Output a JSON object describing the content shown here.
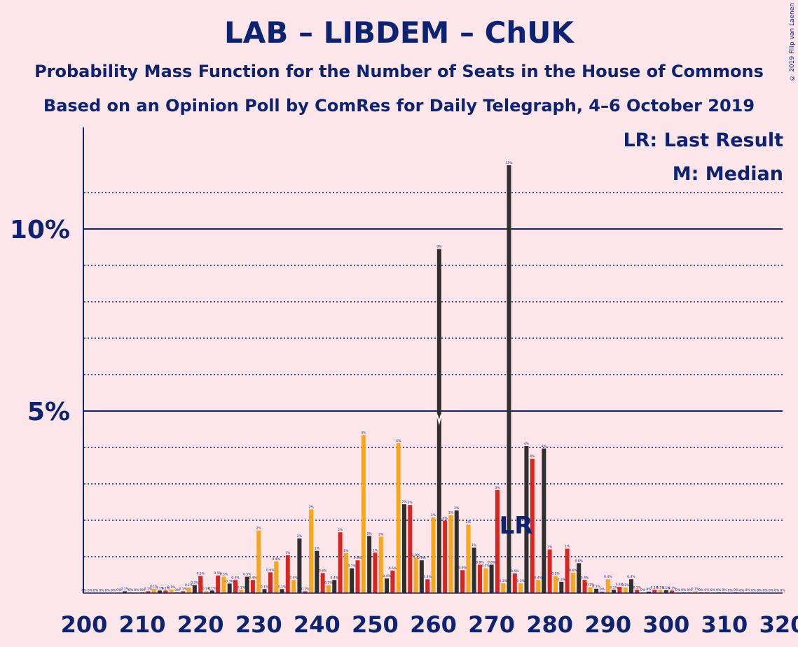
{
  "title": "LAB – LIBDEM – ChUK",
  "subtitle1": "Probability Mass Function for the Number of Seats in the House of Commons",
  "subtitle2": "Based on an Opinion Poll by ComRes for Daily Telegraph, 4–6 October 2019",
  "copyright": "© 2019 Filip van Laenen",
  "legend": {
    "lr": "LR: Last Result",
    "median": "M: Median"
  },
  "markers": {
    "lr_label": "LR",
    "lr_seat": 273,
    "median_label": "M",
    "median_seat": 261
  },
  "colors": {
    "background": "#fde6ea",
    "text": "#0b2372",
    "series": [
      "#2f2f2f",
      "#dc241f",
      "#faa61a"
    ]
  },
  "chart_data": {
    "type": "bar",
    "title": "LAB – LIBDEM – ChUK",
    "xlim": [
      200,
      320
    ],
    "ylim": [
      0,
      12.5
    ],
    "x_ticks": [
      200,
      210,
      220,
      230,
      240,
      250,
      260,
      270,
      280,
      290,
      300,
      310,
      320
    ],
    "y_ticks": [
      {
        "value": 5,
        "label": "5%"
      },
      {
        "value": 10,
        "label": "10%"
      }
    ],
    "gridlines": "dotted at every 1%, solid at 5% and 10%",
    "values": {
      "200": 0.01,
      "201": 0.01,
      "202": 0.01,
      "203": 0.01,
      "204": 0.01,
      "205": 0.01,
      "206": 0.02,
      "207": 0.05,
      "208": 0.02,
      "209": 0.02,
      "210": 0.02,
      "211": 0.05,
      "212": 0.12,
      "213": 0.07,
      "214": 0.07,
      "215": 0.1,
      "216": 0.02,
      "217": 0.05,
      "218": 0.15,
      "219": 0.22,
      "220": 0.47,
      "221": 0.05,
      "222": 0.07,
      "223": 0.48,
      "224": 0.45,
      "225": 0.26,
      "226": 0.36,
      "227": 0.09,
      "228": 0.45,
      "229": 0.36,
      "230": 1.72,
      "231": 0.11,
      "232": 0.57,
      "233": 0.87,
      "234": 0.11,
      "235": 1.04,
      "236": 0.36,
      "237": 1.5,
      "238": 0.05,
      "239": 2.3,
      "240": 1.16,
      "241": 0.55,
      "242": 0.22,
      "243": 0.36,
      "244": 1.67,
      "245": 1.1,
      "246": 0.68,
      "247": 0.9,
      "248": 4.34,
      "249": 1.57,
      "250": 1.11,
      "251": 1.55,
      "252": 0.4,
      "253": 0.62,
      "254": 4.12,
      "255": 2.44,
      "256": 2.42,
      "257": 0.98,
      "258": 0.9,
      "259": 0.38,
      "260": 2.08,
      "261": 9.45,
      "262": 1.99,
      "263": 2.14,
      "264": 2.27,
      "265": 0.63,
      "266": 1.88,
      "267": 1.25,
      "268": 0.78,
      "269": 0.68,
      "270": 0.78,
      "271": 2.83,
      "272": 0.27,
      "273": 11.75,
      "274": 0.54,
      "275": 0.27,
      "276": 4.04,
      "277": 3.69,
      "278": 0.36,
      "279": 3.97,
      "280": 1.2,
      "281": 0.47,
      "282": 0.31,
      "283": 1.22,
      "284": 0.56,
      "285": 0.82,
      "286": 0.36,
      "287": 0.16,
      "288": 0.12,
      "289": 0.04,
      "290": 0.38,
      "291": 0.09,
      "292": 0.17,
      "293": 0.15,
      "294": 0.38,
      "295": 0.09,
      "296": 0.02,
      "297": 0.04,
      "298": 0.09,
      "299": 0.09,
      "300": 0.08,
      "301": 0.07,
      "302": 0.02,
      "303": 0.02,
      "304": 0.02,
      "305": 0.05,
      "306": 0.02,
      "307": 0.02,
      "308": 0.02,
      "309": 0.02,
      "310": 0.02,
      "311": 0.01,
      "312": 0.02,
      "313": 0.01,
      "314": 0.02,
      "315": 0.01,
      "316": 0.01,
      "317": 0.01,
      "318": 0.01,
      "319": 0.01,
      "320": 0.01
    }
  }
}
